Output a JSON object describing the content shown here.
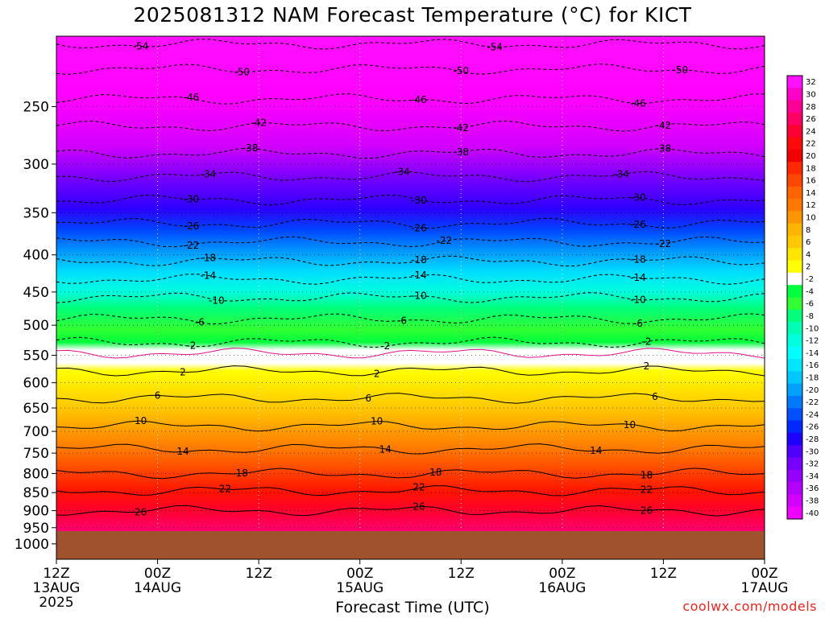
{
  "chart_data": {
    "type": "heatmap",
    "title": "2025081312 NAM Forecast Temperature (°C) for KICT",
    "xlabel": "Forecast Time (UTC)",
    "ylabel": "",
    "credit": "coolwx.com/models",
    "y_scale": "log",
    "ylim": [
      1050,
      200
    ],
    "y_ticks": [
      250,
      300,
      350,
      400,
      450,
      500,
      550,
      600,
      650,
      700,
      750,
      800,
      850,
      900,
      950,
      1000
    ],
    "x_ticks": [
      {
        "hour": 0,
        "label": "12Z",
        "sub": "13AUG",
        "sub2": "2025"
      },
      {
        "hour": 12,
        "label": "00Z",
        "sub": "14AUG",
        "sub2": ""
      },
      {
        "hour": 24,
        "label": "12Z",
        "sub": "",
        "sub2": ""
      },
      {
        "hour": 36,
        "label": "00Z",
        "sub": "15AUG",
        "sub2": ""
      },
      {
        "hour": 48,
        "label": "12Z",
        "sub": "",
        "sub2": ""
      },
      {
        "hour": 60,
        "label": "00Z",
        "sub": "16AUG",
        "sub2": ""
      },
      {
        "hour": 72,
        "label": "12Z",
        "sub": "",
        "sub2": ""
      },
      {
        "hour": 84,
        "label": "00Z",
        "sub": "17AUG",
        "sub2": ""
      }
    ],
    "grid": "dotted",
    "colorbar_labels": [
      "32",
      "30",
      "28",
      "26",
      "24",
      "22",
      "20",
      "18",
      "16",
      "14",
      "12",
      "10",
      "8",
      "6",
      "4",
      "2",
      "-2",
      "-4",
      "-6",
      "-8",
      "-10",
      "-12",
      "-14",
      "-16",
      "-18",
      "-20",
      "-22",
      "-24",
      "-26",
      "-28",
      "-30",
      "-32",
      "-34",
      "-36",
      "-38",
      "-40"
    ],
    "colorbar_colors": [
      "#ff10ff",
      "#ff00c8",
      "#ff0096",
      "#ff0064",
      "#ff0032",
      "#ff0a0a",
      "#f00000",
      "#ff2800",
      "#ff4600",
      "#ff6400",
      "#ff7800",
      "#ff9600",
      "#ffb400",
      "#ffc800",
      "#ffe600",
      "#ffff00",
      "#ffffff",
      "#00ff3c",
      "#32ff32",
      "#00ff7a",
      "#00ffb4",
      "#00ffdc",
      "#00ffff",
      "#00e6ff",
      "#00c8ff",
      "#00a0ff",
      "#0078ff",
      "#0050ff",
      "#0028ff",
      "#1e00ff",
      "#5000ff",
      "#7800ff",
      "#9600ff",
      "#b400ff",
      "#d200ff",
      "#f000ff"
    ],
    "ground_color": "#a0522d",
    "contours": [
      {
        "value": -54,
        "pressure": 205,
        "labels": [
          10,
          52
        ]
      },
      {
        "value": -50,
        "pressure": 222,
        "labels": [
          22,
          48,
          74
        ]
      },
      {
        "value": -46,
        "pressure": 244,
        "labels": [
          16,
          43,
          69
        ]
      },
      {
        "value": -42,
        "pressure": 266,
        "labels": [
          24,
          48,
          72
        ]
      },
      {
        "value": -38,
        "pressure": 290,
        "labels": [
          23,
          48,
          72
        ]
      },
      {
        "value": -34,
        "pressure": 312,
        "labels": [
          18,
          41,
          67
        ]
      },
      {
        "value": -30,
        "pressure": 336,
        "labels": [
          16,
          43,
          69
        ]
      },
      {
        "value": -26,
        "pressure": 362,
        "labels": [
          16,
          43,
          69
        ]
      },
      {
        "value": -22,
        "pressure": 384,
        "labels": [
          16,
          46,
          72
        ]
      },
      {
        "value": -18,
        "pressure": 408,
        "labels": [
          18,
          43,
          69
        ]
      },
      {
        "value": -14,
        "pressure": 432,
        "labels": [
          18,
          43,
          69
        ]
      },
      {
        "value": -10,
        "pressure": 458,
        "labels": [
          19,
          43,
          69
        ]
      },
      {
        "value": -6,
        "pressure": 490,
        "labels": [
          17,
          41,
          69
        ]
      },
      {
        "value": -2,
        "pressure": 528,
        "labels": [
          16,
          39,
          70
        ]
      },
      {
        "value": 2,
        "pressure": 578,
        "labels": [
          15,
          38,
          70
        ]
      },
      {
        "value": 6,
        "pressure": 630,
        "labels": [
          12,
          37,
          71
        ]
      },
      {
        "value": 10,
        "pressure": 688,
        "labels": [
          10,
          38,
          68
        ]
      },
      {
        "value": 14,
        "pressure": 740,
        "labels": [
          15,
          39,
          64
        ]
      },
      {
        "value": 18,
        "pressure": 800,
        "labels": [
          22,
          45,
          70
        ]
      },
      {
        "value": 22,
        "pressure": 845,
        "labels": [
          20,
          43,
          70
        ]
      },
      {
        "value": 26,
        "pressure": 900,
        "labels": [
          10,
          43,
          70
        ]
      }
    ]
  }
}
